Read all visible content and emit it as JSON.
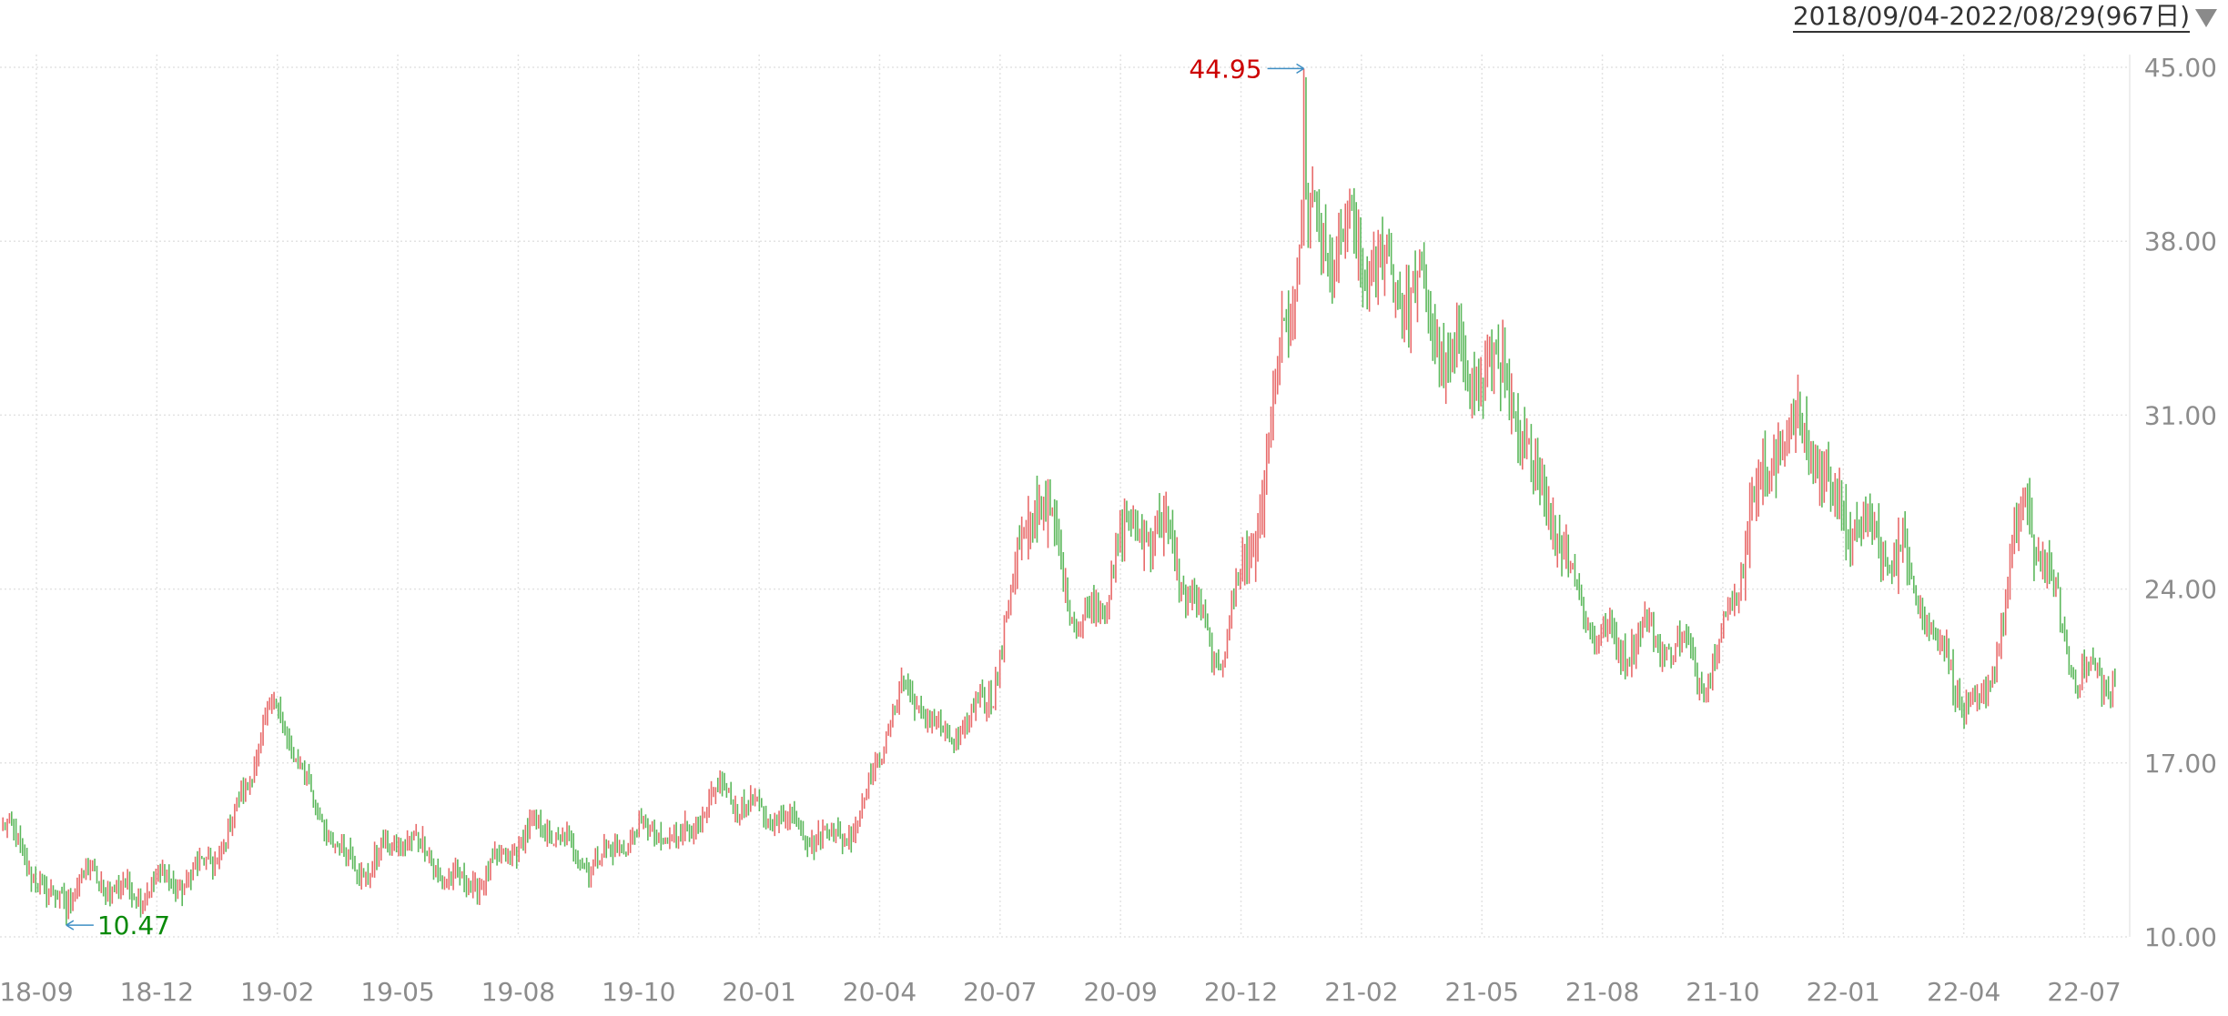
{
  "header": {
    "range_label": "2018/09/04-2022/08/29(967日)",
    "dropdown_icon": "triangle-down-icon"
  },
  "colors": {
    "up": "#e86b6b",
    "down": "#5cb85c",
    "grid": "#e3e3e3",
    "axis_text": "#8c8c8c",
    "max_label": "#cc0000",
    "min_label": "#0a8a0a",
    "marker_line": "#3f8fc4"
  },
  "chart_data": {
    "type": "line",
    "title": "",
    "xlabel": "",
    "ylabel": "",
    "ylim": [
      10,
      45
    ],
    "y_ticks": [
      {
        "value": 45,
        "label": "45.00"
      },
      {
        "value": 38,
        "label": "38.00"
      },
      {
        "value": 31,
        "label": "31.00"
      },
      {
        "value": 24,
        "label": "24.00"
      },
      {
        "value": 17,
        "label": "17.00"
      },
      {
        "value": 10,
        "label": "10.00"
      }
    ],
    "x_ticks": [
      "18-09",
      "18-12",
      "19-02",
      "19-05",
      "19-08",
      "19-10",
      "20-01",
      "20-04",
      "20-07",
      "20-09",
      "20-12",
      "21-02",
      "21-05",
      "21-08",
      "21-10",
      "22-01",
      "22-04",
      "22-07"
    ],
    "total_sessions": 967,
    "max_point": {
      "label": "44.95",
      "value": 44.95
    },
    "min_point": {
      "label": "10.47",
      "value": 10.47
    },
    "series": [
      {
        "x": [
          "18-09",
          "18-10",
          "18-11",
          "18-12",
          "19-01",
          "19-02",
          "19-03",
          "19-04",
          "19-05",
          "19-06",
          "19-07",
          "19-08",
          "19-09",
          "19-10",
          "19-11",
          "19-12",
          "20-01",
          "20-02",
          "20-03",
          "20-04",
          "20-05",
          "20-06",
          "20-07",
          "20-08",
          "20-09",
          "20-10",
          "20-11",
          "20-12",
          "21-01",
          "21-02",
          "21-03",
          "21-04",
          "21-05",
          "21-06",
          "21-07",
          "21-08",
          "21-09",
          "21-10",
          "21-11",
          "21-12",
          "22-01",
          "22-02",
          "22-03",
          "22-04",
          "22-05",
          "22-06",
          "22-07",
          "22-08"
        ],
        "values": [
          14.5,
          11.0,
          13.0,
          11.5,
          12.0,
          14.5,
          19.0,
          15.0,
          13.0,
          13.5,
          12.5,
          13.0,
          14.0,
          13.5,
          14.0,
          13.5,
          16.5,
          14.5,
          14.0,
          15.0,
          19.5,
          18.0,
          20.5,
          27.0,
          23.0,
          26.5,
          25.0,
          22.0,
          27.0,
          38.0,
          39.5,
          35.0,
          34.0,
          34.5,
          28.0,
          24.5,
          22.0,
          21.0,
          21.5,
          27.5,
          30.0,
          28.0,
          25.0,
          22.0,
          19.5,
          26.5,
          21.5,
          21.0
        ]
      }
    ]
  }
}
